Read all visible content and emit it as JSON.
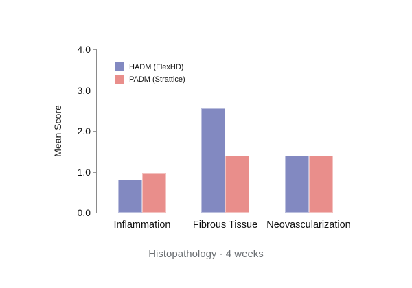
{
  "chart_data": {
    "type": "bar",
    "title": "Histopathology - 4 weeks",
    "xlabel": "",
    "ylabel": "Mean Score",
    "categories": [
      "Inflammation",
      "Fibrous Tissue",
      "Neovascularization"
    ],
    "series": [
      {
        "name": "HADM (FlexHD)",
        "color": "#8289c1",
        "values": [
          0.8,
          2.55,
          1.4
        ]
      },
      {
        "name": "PADM (Strattice)",
        "color": "#e98e8b",
        "values": [
          0.95,
          1.4,
          1.4
        ]
      }
    ],
    "ylim": [
      0,
      4
    ],
    "ytick_labels": [
      "0.0",
      "1.0",
      "2.0",
      "3.0",
      "4.0"
    ],
    "ytick_values": [
      0,
      1,
      2,
      3,
      4
    ],
    "grid": false,
    "legend_position": "upper-left",
    "colors": {
      "axis": "#8a8a8a",
      "text": "#111111",
      "title_text": "#6b6f73",
      "background": "#ffffff"
    }
  }
}
